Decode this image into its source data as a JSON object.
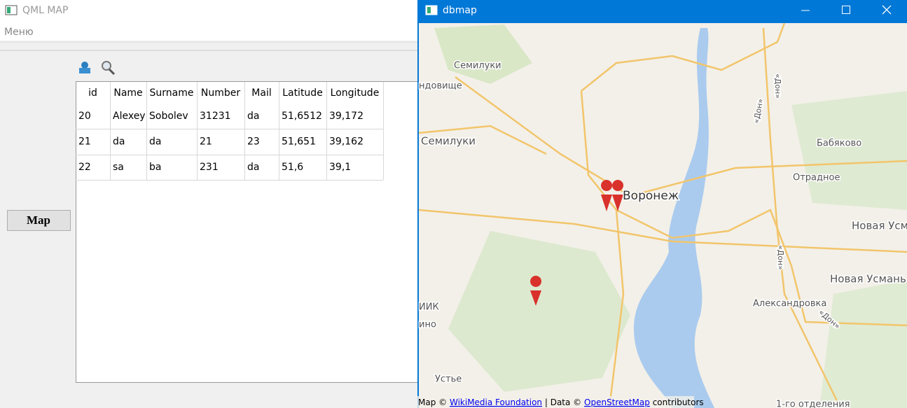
{
  "left_window": {
    "title": "QML MAP",
    "menu": "Меню",
    "button": "Map",
    "table": {
      "headers": [
        "id",
        "Name",
        "Surname",
        "Number",
        "Mail",
        "Latitude",
        "Longitude"
      ],
      "rows": [
        [
          "20",
          "Alexey",
          "Sobolev",
          "31231",
          "da",
          "51,6512",
          "39,172"
        ],
        [
          "21",
          "da",
          "da",
          "21",
          "23",
          "51,651",
          "39,162"
        ],
        [
          "22",
          "sa",
          "ba",
          "231",
          "da",
          "51,6",
          "39,1"
        ]
      ]
    }
  },
  "right_window": {
    "title": "dbmap",
    "map_labels": [
      "Семилуки",
      "ндовище",
      "Семилуки",
      "Воронеж",
      "Бабяково",
      "Отрадное",
      "Новая Усм",
      "Новая Усмань",
      "Александровка",
      "ИИК",
      "ино",
      "Устье",
      "1-го отделения",
      "«Дон»",
      "«Дон»",
      "«Дон»",
      "«Дон»"
    ],
    "attribution": {
      "prefix": "Map ©",
      "link1": "WikiMedia Foundation",
      "middle": "| Data ©",
      "link2": "OpenStreetMap",
      "suffix": "contributors"
    }
  }
}
